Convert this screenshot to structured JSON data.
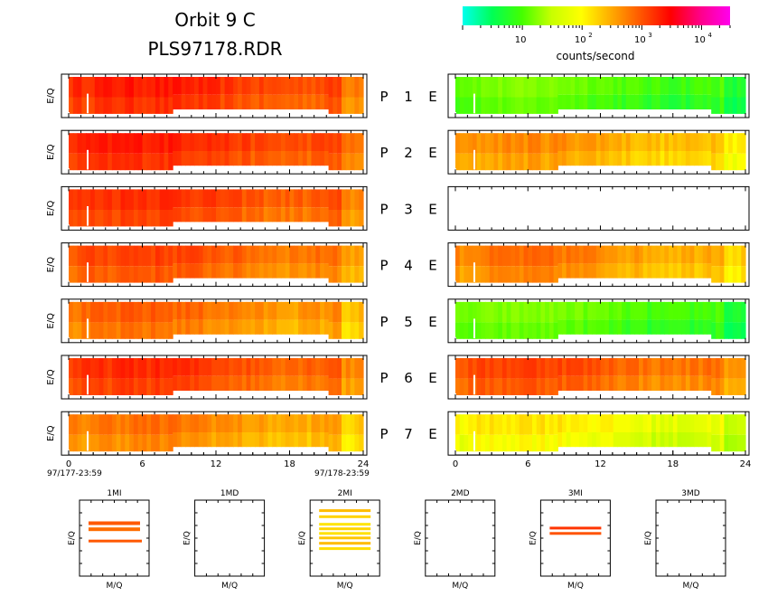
{
  "header": {
    "title_line1": "Orbit 9 C",
    "title_line2": "PLS97178.RDR"
  },
  "colorbar": {
    "unit_label": "counts/second",
    "scale": "log",
    "range": [
      1,
      30000
    ],
    "colors": [
      "#00ffee",
      "#00ff55",
      "#44ff00",
      "#c8ff00",
      "#ffff00",
      "#ffaa00",
      "#ff5500",
      "#ff0000",
      "#ff0088",
      "#ff00ee"
    ],
    "ticks": [
      {
        "base": "10",
        "exp": ""
      },
      {
        "base": "10",
        "exp": "2"
      },
      {
        "base": "10",
        "exp": "3"
      },
      {
        "base": "10",
        "exp": "4"
      }
    ]
  },
  "panel_ylabel": "E/Q",
  "panel_rows": [
    {
      "p_label": "P",
      "p_num": "1",
      "e_label": "E"
    },
    {
      "p_label": "P",
      "p_num": "2",
      "e_label": "E"
    },
    {
      "p_label": "P",
      "p_num": "3",
      "e_label": "E"
    },
    {
      "p_label": "P",
      "p_num": "4",
      "e_label": "E"
    },
    {
      "p_label": "P",
      "p_num": "5",
      "e_label": "E"
    },
    {
      "p_label": "P",
      "p_num": "6",
      "e_label": "E"
    },
    {
      "p_label": "P",
      "p_num": "7",
      "e_label": "E"
    }
  ],
  "xaxis": {
    "ticks": [
      "0",
      "6",
      "12",
      "18",
      "24"
    ],
    "start_label": "97/177-23:59",
    "end_label": "97/178-23:59"
  },
  "mass_panels": {
    "ylabel": "E/Q",
    "xlabel": "M/Q",
    "titles": [
      "1MI",
      "1MD",
      "2MI",
      "2MD",
      "3MI",
      "3MD"
    ]
  },
  "chart_data": {
    "type": "heatmap",
    "x_range_hours": [
      0,
      24
    ],
    "x_ticks": [
      0,
      6,
      12,
      18,
      24
    ],
    "color_scale": "log",
    "color_range_counts_per_second": [
      1,
      30000
    ],
    "left_column_typical_counts_per_second": [
      2500,
      2500,
      2000,
      1500,
      1000,
      2000,
      800
    ],
    "right_column_typical_counts_per_second": [
      30,
      600,
      null,
      800,
      30,
      1500,
      200
    ],
    "right_column_p3_empty": true,
    "mass_panel_band_counts_per_second": [
      1500,
      null,
      400,
      null,
      2000,
      null
    ],
    "mass_panel_band_counts": [
      3,
      0,
      8,
      0,
      2,
      0
    ]
  }
}
